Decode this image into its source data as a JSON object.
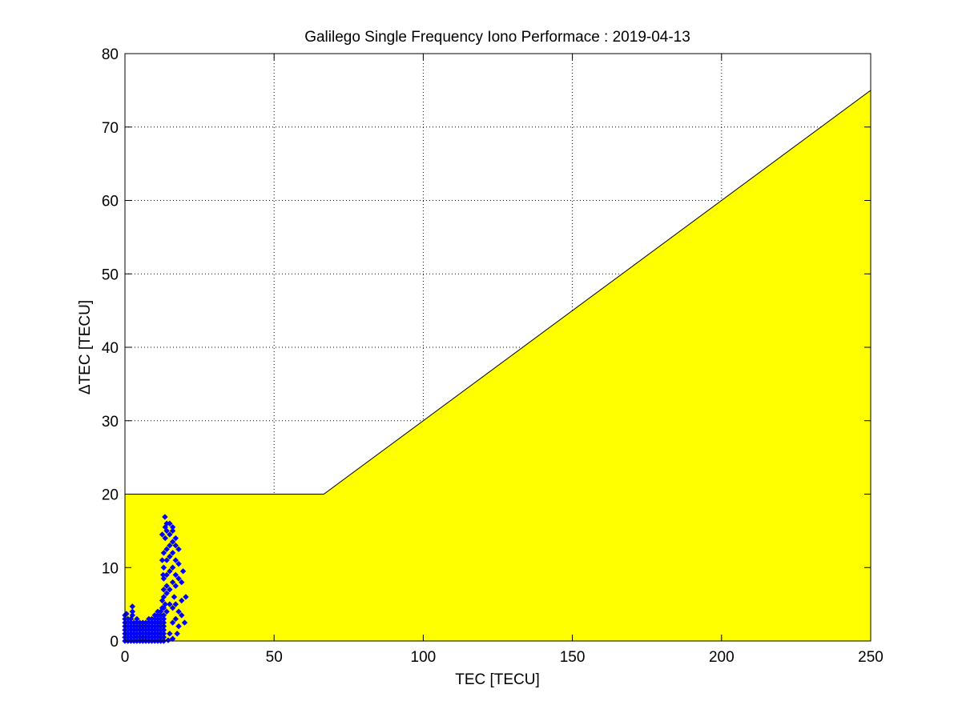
{
  "chart_data": {
    "type": "scatter",
    "title": "Galilego Single Frequency Iono Performace : 2019-04-13",
    "xlabel": "TEC [TECU]",
    "ylabel": "ΔTEC [TECU]",
    "xlim": [
      0,
      250
    ],
    "ylim": [
      0,
      80
    ],
    "xticks": [
      0,
      50,
      100,
      150,
      200,
      250
    ],
    "yticks": [
      0,
      10,
      20,
      30,
      40,
      50,
      60,
      70,
      80
    ],
    "grid": true,
    "colors": {
      "bound_fill": "#ffff00",
      "points": "#0000ff",
      "grid": "#000000"
    },
    "bound_region": [
      [
        0,
        0
      ],
      [
        0,
        20
      ],
      [
        66.67,
        20
      ],
      [
        250,
        75
      ],
      [
        250,
        0
      ]
    ],
    "points": [
      [
        0,
        0
      ],
      [
        1,
        0
      ],
      [
        2,
        0
      ],
      [
        3,
        0
      ],
      [
        4,
        0
      ],
      [
        5,
        0
      ],
      [
        6,
        0
      ],
      [
        7,
        0
      ],
      [
        8,
        0
      ],
      [
        9,
        0
      ],
      [
        10,
        0
      ],
      [
        11,
        0
      ],
      [
        12,
        0
      ],
      [
        13,
        0
      ],
      [
        0,
        0.5
      ],
      [
        1,
        0.5
      ],
      [
        2,
        0.5
      ],
      [
        3,
        0.5
      ],
      [
        4,
        0.5
      ],
      [
        5,
        0.5
      ],
      [
        6,
        0.5
      ],
      [
        7,
        0.5
      ],
      [
        8,
        0.5
      ],
      [
        9,
        0.5
      ],
      [
        10,
        0.5
      ],
      [
        11,
        0.5
      ],
      [
        12,
        0.5
      ],
      [
        13,
        0.5
      ],
      [
        0,
        1
      ],
      [
        1,
        1
      ],
      [
        2,
        1
      ],
      [
        3,
        1
      ],
      [
        4,
        1
      ],
      [
        5,
        1
      ],
      [
        6,
        1
      ],
      [
        7,
        1
      ],
      [
        8,
        1
      ],
      [
        9,
        1
      ],
      [
        10,
        1
      ],
      [
        11,
        1
      ],
      [
        12,
        1
      ],
      [
        13,
        1
      ],
      [
        0,
        1.5
      ],
      [
        1,
        1.5
      ],
      [
        2,
        1.5
      ],
      [
        3,
        1.5
      ],
      [
        4,
        1.5
      ],
      [
        5,
        1.5
      ],
      [
        6,
        1.5
      ],
      [
        7,
        1.5
      ],
      [
        8,
        1.5
      ],
      [
        9,
        1.5
      ],
      [
        10,
        1.5
      ],
      [
        11,
        1.5
      ],
      [
        12,
        1.5
      ],
      [
        13,
        1.5
      ],
      [
        0,
        2
      ],
      [
        1,
        2
      ],
      [
        2,
        2
      ],
      [
        3,
        2
      ],
      [
        4,
        2
      ],
      [
        5,
        2
      ],
      [
        6,
        2
      ],
      [
        7,
        2
      ],
      [
        8,
        2
      ],
      [
        9,
        2
      ],
      [
        10,
        2
      ],
      [
        11,
        2
      ],
      [
        12,
        2
      ],
      [
        13,
        2
      ],
      [
        0,
        2.5
      ],
      [
        1,
        2.5
      ],
      [
        2,
        2.5
      ],
      [
        3,
        2.5
      ],
      [
        4,
        2.5
      ],
      [
        5,
        2.5
      ],
      [
        6,
        2.5
      ],
      [
        7,
        2.5
      ],
      [
        8,
        2.5
      ],
      [
        9,
        2.5
      ],
      [
        10,
        2.5
      ],
      [
        11,
        2.5
      ],
      [
        12,
        2.5
      ],
      [
        13,
        2.5
      ],
      [
        0,
        3
      ],
      [
        1,
        3
      ],
      [
        2,
        3
      ],
      [
        2.5,
        3.5
      ],
      [
        8,
        3
      ],
      [
        9,
        3
      ],
      [
        10,
        3
      ],
      [
        11,
        3
      ],
      [
        12,
        3
      ],
      [
        13,
        3
      ],
      [
        0,
        3.5
      ],
      [
        0.5,
        3.7
      ],
      [
        10,
        3.5
      ],
      [
        11,
        3.5
      ],
      [
        12,
        3.5
      ],
      [
        13,
        3.5
      ],
      [
        2.5,
        4
      ],
      [
        2.5,
        4.7
      ],
      [
        4,
        3
      ],
      [
        11,
        4
      ],
      [
        12,
        4
      ],
      [
        12.5,
        4.5
      ],
      [
        13,
        4.5
      ],
      [
        13.5,
        5
      ],
      [
        14,
        4
      ],
      [
        12.5,
        5.5
      ],
      [
        13,
        6
      ],
      [
        14,
        6.5
      ],
      [
        15,
        5
      ],
      [
        16,
        4.5
      ],
      [
        17,
        5
      ],
      [
        18,
        4
      ],
      [
        19,
        5.5
      ],
      [
        20.4,
        6
      ],
      [
        13,
        7
      ],
      [
        14,
        7.5
      ],
      [
        15,
        7
      ],
      [
        16,
        8
      ],
      [
        17,
        7.5
      ],
      [
        18,
        8.5
      ],
      [
        19,
        8
      ],
      [
        13,
        8.5
      ],
      [
        14,
        9
      ],
      [
        15,
        9.5
      ],
      [
        16,
        10
      ],
      [
        17,
        9
      ],
      [
        18,
        10.5
      ],
      [
        19.5,
        9.5
      ],
      [
        13,
        10
      ],
      [
        14,
        11
      ],
      [
        15,
        11.5
      ],
      [
        16,
        12
      ],
      [
        17,
        11
      ],
      [
        18,
        12.5
      ],
      [
        13,
        12
      ],
      [
        14,
        12.5
      ],
      [
        15,
        13
      ],
      [
        16,
        13.5
      ],
      [
        17,
        13
      ],
      [
        13.5,
        14
      ],
      [
        14,
        15
      ],
      [
        15,
        14.5
      ],
      [
        16,
        15
      ],
      [
        17,
        14
      ],
      [
        13.5,
        15.5
      ],
      [
        14,
        16
      ],
      [
        15,
        16
      ],
      [
        16,
        15.5
      ],
      [
        13.4,
        16.9
      ],
      [
        12.5,
        14.5
      ],
      [
        12.5,
        11
      ],
      [
        12.8,
        9
      ],
      [
        16,
        2.5
      ],
      [
        15,
        1
      ],
      [
        16,
        0.3
      ],
      [
        14.5,
        0.1
      ],
      [
        17,
        3
      ],
      [
        18,
        2
      ],
      [
        19,
        3.5
      ],
      [
        20,
        2.5
      ],
      [
        17.5,
        1
      ],
      [
        16.5,
        6
      ]
    ]
  }
}
